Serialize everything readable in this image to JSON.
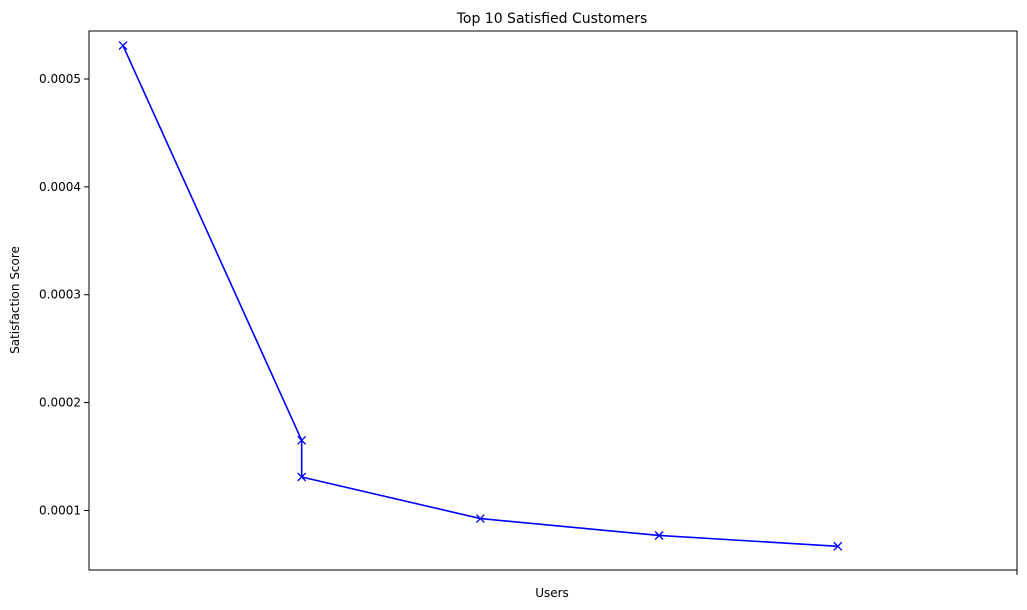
{
  "chart_data": {
    "type": "line",
    "title": "Top 10 Satisfied Customers",
    "xlabel": "Users",
    "ylabel": "Satisfaction Score",
    "ylim": [
      4.48e-05,
      0.0005445
    ],
    "y_ticks": [
      {
        "value": 0.0001,
        "label": "0.0001"
      },
      {
        "value": 0.0002,
        "label": "0.0002"
      },
      {
        "value": 0.0003,
        "label": "0.0003"
      },
      {
        "value": 0.0004,
        "label": "0.0004"
      },
      {
        "value": 0.0005,
        "label": "0.0005"
      }
    ],
    "x_count": 5,
    "grid": false,
    "series": [
      {
        "color": "#0000ff",
        "marker": "x",
        "points": [
          {
            "x": 0,
            "y": 0.000531
          },
          {
            "x": 1,
            "y": 0.000165
          },
          {
            "x": 1,
            "y": 0.000131
          },
          {
            "x": 2,
            "y": 9.25e-05
          },
          {
            "x": 3,
            "y": 7.68e-05
          },
          {
            "x": 4,
            "y": 6.68e-05
          }
        ]
      }
    ]
  }
}
